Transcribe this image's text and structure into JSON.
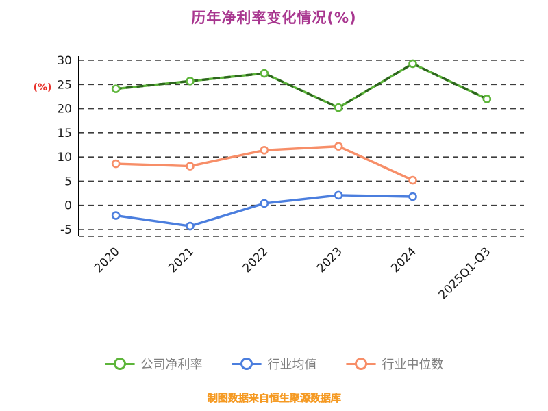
{
  "title": "历年净利率变化情况(%)",
  "footer": "制图数据来自恒生聚源数据库",
  "colors": {
    "title": "#a8368f",
    "ylabel": "#e8312a",
    "axis_text": "#1a1a1a",
    "legend_text": "#7f7f7f",
    "footer": "#f59a23",
    "grid": "#3d3d3d",
    "axis_line": "#000000"
  },
  "chart_data": {
    "type": "line",
    "title": "历年净利率变化情况(%)",
    "xlabel": "",
    "ylabel": "(%)",
    "categories": [
      "2020",
      "2021",
      "2022",
      "2023",
      "2024",
      "2025Q1-Q3"
    ],
    "yticks": [
      30,
      25,
      20,
      15,
      10,
      5,
      0,
      -5
    ],
    "ylim": [
      -6.8,
      30
    ],
    "grid": "dashed-horizontal",
    "legend_position": "bottom",
    "overlay_color": "#2c661c",
    "series": [
      {
        "name": "公司净利率",
        "color": "#5db53a",
        "dash_overlay": true,
        "values": [
          24.1,
          25.7,
          27.3,
          20.2,
          29.3,
          22.0
        ]
      },
      {
        "name": "行业均值",
        "color": "#4b7ede",
        "dash_overlay": false,
        "values": [
          -2.1,
          -4.3,
          0.4,
          2.1,
          1.8,
          null
        ]
      },
      {
        "name": "行业中位数",
        "color": "#f78e68",
        "dash_overlay": false,
        "values": [
          8.6,
          8.1,
          11.4,
          12.2,
          5.2,
          null
        ]
      }
    ],
    "source_note": "制图数据来自恒生聚源数据库"
  }
}
